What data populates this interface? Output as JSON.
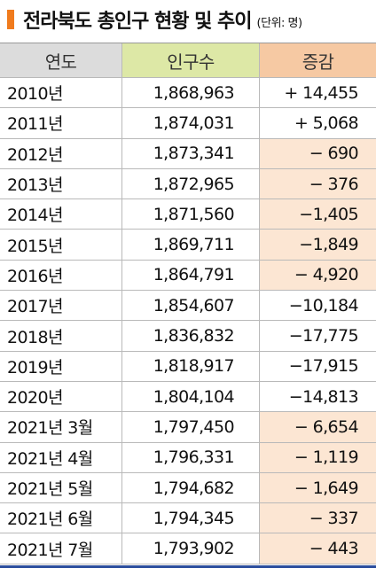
{
  "header": {
    "title": "전라북도 총인구 현황 및 추이",
    "unit": "(단위: 명)"
  },
  "table": {
    "columns": [
      "연도",
      "인구수",
      "증감"
    ],
    "rows": [
      {
        "year": "2010년",
        "population": "1,868,963",
        "change": "+ 14,455",
        "shaded": false
      },
      {
        "year": "2011년",
        "population": "1,874,031",
        "change": "+ 5,068",
        "shaded": false
      },
      {
        "year": "2012년",
        "population": "1,873,341",
        "change": "− 690",
        "shaded": true
      },
      {
        "year": "2013년",
        "population": "1,872,965",
        "change": "− 376",
        "shaded": true
      },
      {
        "year": "2014년",
        "population": "1,871,560",
        "change": "−1,405",
        "shaded": true
      },
      {
        "year": "2015년",
        "population": "1,869,711",
        "change": "−1,849",
        "shaded": true
      },
      {
        "year": "2016년",
        "population": "1,864,791",
        "change": "− 4,920",
        "shaded": true
      },
      {
        "year": "2017년",
        "population": "1,854,607",
        "change": "−10,184",
        "shaded": false
      },
      {
        "year": "2018년",
        "population": "1,836,832",
        "change": "−17,775",
        "shaded": false
      },
      {
        "year": "2019년",
        "population": "1,818,917",
        "change": "−17,915",
        "shaded": false
      },
      {
        "year": "2020년",
        "population": "1,804,104",
        "change": "−14,813",
        "shaded": false
      },
      {
        "year": "2021년 3월",
        "population": "1,797,450",
        "change": "− 6,654",
        "shaded": true
      },
      {
        "year": "2021년 4월",
        "population": "1,796,331",
        "change": "− 1,119",
        "shaded": true
      },
      {
        "year": "2021년 5월",
        "population": "1,794,682",
        "change": "− 1,649",
        "shaded": true
      },
      {
        "year": "2021년 6월",
        "population": "1,794,345",
        "change": "− 337",
        "shaded": true
      },
      {
        "year": "2021년 7월",
        "population": "1,793,902",
        "change": "− 443",
        "shaded": true
      }
    ]
  }
}
